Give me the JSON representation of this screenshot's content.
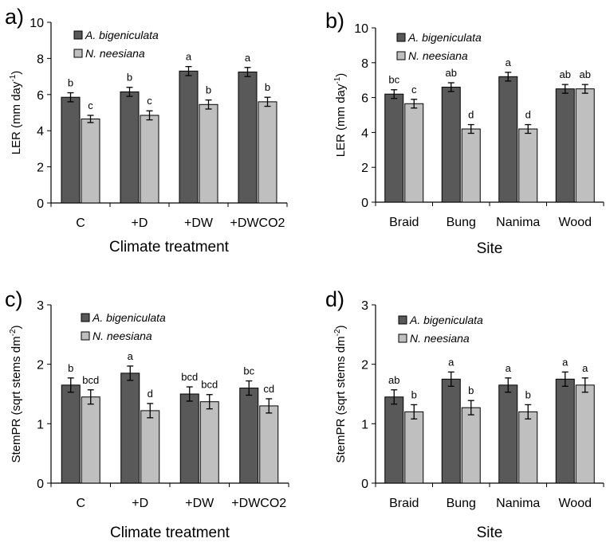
{
  "colors": {
    "series_dark": "#595959",
    "series_light": "#bfbfbf",
    "outline": "#000000"
  },
  "chart_data": [
    {
      "panel_label": "a)",
      "type": "bar",
      "ylabel_main": "LER (mm day",
      "ylabel_sup": "-1",
      "ylabel_tail": ")",
      "xlabel": "Climate treatment",
      "ylim": [
        0,
        10
      ],
      "yticks": [
        0,
        2,
        4,
        6,
        8,
        10
      ],
      "categories": [
        "C",
        "+D",
        "+DW",
        "+DWCO2"
      ],
      "series": [
        {
          "name": "A. bigeniculata",
          "values": [
            5.85,
            6.15,
            7.3,
            7.25
          ],
          "errors": [
            0.25,
            0.25,
            0.25,
            0.25
          ],
          "letters": [
            "b",
            "b",
            "a",
            "a"
          ]
        },
        {
          "name": "N. neesiana",
          "values": [
            4.65,
            4.85,
            5.45,
            5.6
          ],
          "errors": [
            0.2,
            0.25,
            0.25,
            0.25
          ],
          "letters": [
            "c",
            "c",
            "b",
            "b"
          ]
        }
      ]
    },
    {
      "panel_label": "b)",
      "type": "bar",
      "ylabel_main": "LER (mm day",
      "ylabel_sup": "-1",
      "ylabel_tail": ")",
      "xlabel": "Site",
      "ylim": [
        0,
        10
      ],
      "yticks": [
        0,
        2,
        4,
        6,
        8,
        10
      ],
      "categories": [
        "Braid",
        "Bung",
        "Nanima",
        "Wood"
      ],
      "series": [
        {
          "name": "A. bigeniculata",
          "values": [
            6.2,
            6.6,
            7.2,
            6.5
          ],
          "errors": [
            0.25,
            0.25,
            0.25,
            0.25
          ],
          "letters": [
            "bc",
            "ab",
            "a",
            "ab"
          ]
        },
        {
          "name": "N. neesiana",
          "values": [
            5.65,
            4.2,
            4.2,
            6.5
          ],
          "errors": [
            0.25,
            0.25,
            0.25,
            0.25
          ],
          "letters": [
            "c",
            "d",
            "d",
            "ab"
          ]
        }
      ]
    },
    {
      "panel_label": "c)",
      "type": "bar",
      "ylabel_main": "StemPR (sqrt stems dm",
      "ylabel_sup": "-2",
      "ylabel_tail": ")",
      "xlabel": "Climate treatment",
      "ylim": [
        0,
        3
      ],
      "yticks": [
        0,
        1,
        2,
        3
      ],
      "categories": [
        "C",
        "+D",
        "+DW",
        "+DWCO2"
      ],
      "series": [
        {
          "name": "A. bigeniculata",
          "values": [
            1.65,
            1.85,
            1.5,
            1.6
          ],
          "errors": [
            0.12,
            0.12,
            0.12,
            0.12
          ],
          "letters": [
            "b",
            "a",
            "bcd",
            "bc"
          ]
        },
        {
          "name": "N. neesiana",
          "values": [
            1.45,
            1.22,
            1.37,
            1.3
          ],
          "errors": [
            0.12,
            0.12,
            0.12,
            0.12
          ],
          "letters": [
            "bcd",
            "d",
            "bcd",
            "cd"
          ]
        }
      ]
    },
    {
      "panel_label": "d)",
      "type": "bar",
      "ylabel_main": "StemPR (sqrt stems dm",
      "ylabel_sup": "-2",
      "ylabel_tail": ")",
      "xlabel": "Site",
      "ylim": [
        0,
        3
      ],
      "yticks": [
        0,
        1,
        2,
        3
      ],
      "categories": [
        "Braid",
        "Bung",
        "Nanima",
        "Wood"
      ],
      "series": [
        {
          "name": "A. bigeniculata",
          "values": [
            1.45,
            1.75,
            1.65,
            1.75
          ],
          "errors": [
            0.12,
            0.12,
            0.12,
            0.12
          ],
          "letters": [
            "ab",
            "a",
            "a",
            "a"
          ]
        },
        {
          "name": "N. neesiana",
          "values": [
            1.2,
            1.27,
            1.2,
            1.65
          ],
          "errors": [
            0.12,
            0.12,
            0.12,
            0.12
          ],
          "letters": [
            "b",
            "b",
            "b",
            "a"
          ]
        }
      ]
    }
  ]
}
